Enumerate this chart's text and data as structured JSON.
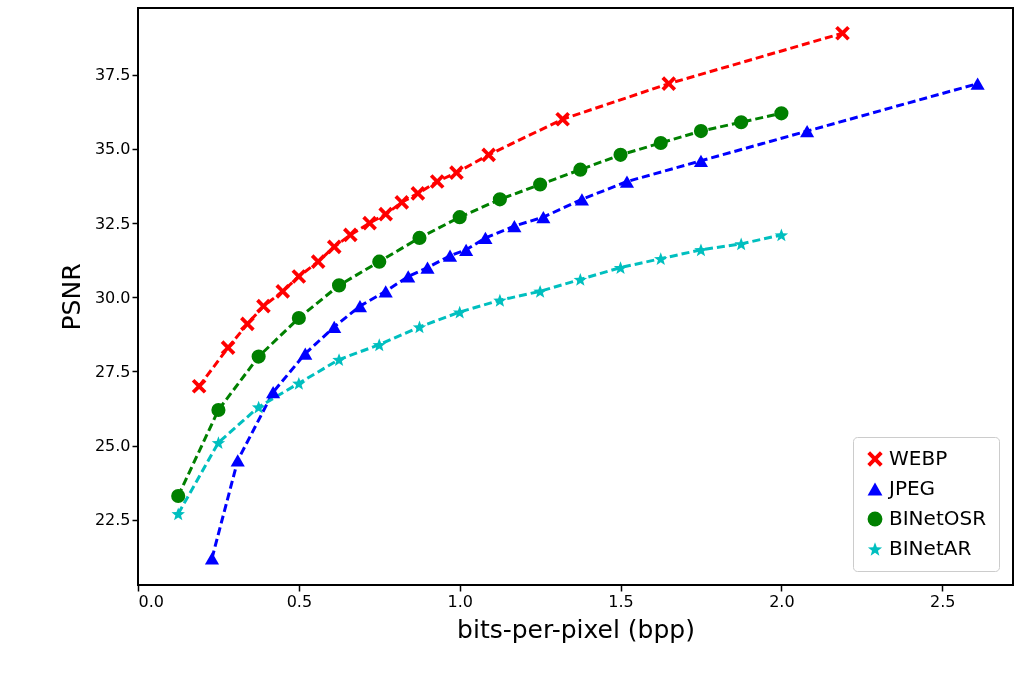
{
  "chart_data": {
    "type": "line",
    "xlabel": "bits-per-pixel (bpp)",
    "ylabel": "PSNR",
    "xlim": [
      0,
      2.72
    ],
    "ylim": [
      20.3,
      39.75
    ],
    "xticks": [
      {
        "value": 0,
        "label": "0.0"
      },
      {
        "value": 0.5,
        "label": "0.5"
      },
      {
        "value": 1,
        "label": "1.0"
      },
      {
        "value": 1.5,
        "label": "1.5"
      },
      {
        "value": 2,
        "label": "2.0"
      },
      {
        "value": 2.5,
        "label": "2.5"
      }
    ],
    "yticks": [
      {
        "value": 22.5,
        "label": "22.5"
      },
      {
        "value": 25,
        "label": "25.0"
      },
      {
        "value": 27.5,
        "label": "27.5"
      },
      {
        "value": 30,
        "label": "30.0"
      },
      {
        "value": 32.5,
        "label": "32.5"
      },
      {
        "value": 35,
        "label": "35.0"
      },
      {
        "value": 37.5,
        "label": "37.5"
      }
    ],
    "grid": false,
    "legend": "bottom right",
    "line_style": "dashed",
    "series": [
      {
        "name": "WEBP",
        "color": "#ff0000",
        "marker": "cross",
        "x": [
          0.19,
          0.28,
          0.34,
          0.39,
          0.45,
          0.5,
          0.56,
          0.61,
          0.66,
          0.72,
          0.77,
          0.82,
          0.87,
          0.93,
          0.99,
          1.09,
          1.32,
          1.65,
          2.19
        ],
        "values": [
          27.0,
          28.3,
          29.1,
          29.7,
          30.2,
          30.7,
          31.2,
          31.7,
          32.1,
          32.5,
          32.8,
          33.2,
          33.5,
          33.9,
          34.2,
          34.8,
          36.0,
          37.2,
          38.9
        ]
      },
      {
        "name": "JPEG",
        "color": "#0000ff",
        "marker": "triangle",
        "x": [
          0.23,
          0.31,
          0.42,
          0.52,
          0.61,
          0.69,
          0.77,
          0.84,
          0.9,
          0.97,
          1.02,
          1.08,
          1.17,
          1.26,
          1.38,
          1.52,
          1.75,
          2.08,
          2.61
        ],
        "values": [
          21.2,
          24.5,
          26.8,
          28.1,
          29.0,
          29.7,
          30.2,
          30.7,
          31.0,
          31.4,
          31.6,
          32.0,
          32.4,
          32.7,
          33.3,
          33.9,
          34.6,
          35.6,
          37.2
        ]
      },
      {
        "name": "BINetOSR",
        "color": "#008000",
        "marker": "circle",
        "x": [
          0.125,
          0.25,
          0.375,
          0.5,
          0.625,
          0.75,
          0.875,
          1.0,
          1.125,
          1.25,
          1.375,
          1.5,
          1.625,
          1.75,
          1.875,
          2.0
        ],
        "values": [
          23.3,
          26.2,
          28.0,
          29.3,
          30.4,
          31.2,
          32.0,
          32.7,
          33.3,
          33.8,
          34.3,
          34.8,
          35.2,
          35.6,
          35.9,
          36.2
        ]
      },
      {
        "name": "BINetAR",
        "color": "#00bfbf",
        "marker": "star",
        "x": [
          0.125,
          0.25,
          0.375,
          0.5,
          0.625,
          0.75,
          0.875,
          1.0,
          1.125,
          1.25,
          1.375,
          1.5,
          1.625,
          1.75,
          1.875,
          2.0
        ],
        "values": [
          22.7,
          25.1,
          26.3,
          27.1,
          27.9,
          28.4,
          29.0,
          29.5,
          29.9,
          30.2,
          30.6,
          31.0,
          31.3,
          31.6,
          31.8,
          32.1
        ]
      }
    ]
  }
}
